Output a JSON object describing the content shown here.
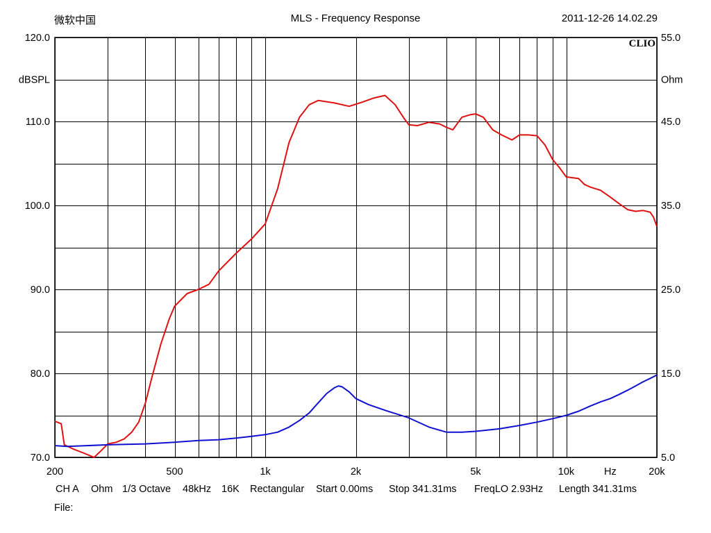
{
  "header": {
    "left": "微软中国",
    "title": "MLS - Frequency Response",
    "timestamp": "2011-12-26 14.02.29"
  },
  "chart_data": {
    "type": "line",
    "title": "MLS - Frequency Response",
    "brand": "CLIO",
    "x_scale": "log",
    "xlim": [
      200,
      20000
    ],
    "x_unit": "Hz",
    "x_tick_labels": [
      {
        "value": 200,
        "label": "200"
      },
      {
        "value": 500,
        "label": "500"
      },
      {
        "value": 1000,
        "label": "1k"
      },
      {
        "value": 2000,
        "label": "2k"
      },
      {
        "value": 5000,
        "label": "5k"
      },
      {
        "value": 10000,
        "label": "10k"
      },
      {
        "value": 20000,
        "label": "20k"
      }
    ],
    "x_gridlines": [
      200,
      300,
      400,
      500,
      600,
      700,
      800,
      900,
      1000,
      2000,
      3000,
      4000,
      5000,
      6000,
      7000,
      8000,
      9000,
      10000,
      20000
    ],
    "y_left": {
      "unit": "dBSPL",
      "range": [
        70,
        120
      ],
      "ticks": [
        {
          "value": 70,
          "label": "70.0"
        },
        {
          "value": 80,
          "label": "80.0"
        },
        {
          "value": 90,
          "label": "90.0"
        },
        {
          "value": 100,
          "label": "100.0"
        },
        {
          "value": 110,
          "label": "110.0"
        },
        {
          "value": 120,
          "label": "120.0"
        }
      ]
    },
    "y_right": {
      "unit": "Ohm",
      "range": [
        5,
        55
      ],
      "ticks": [
        {
          "value": 5,
          "label": "5.0"
        },
        {
          "value": 15,
          "label": "15.0"
        },
        {
          "value": 25,
          "label": "25.0"
        },
        {
          "value": 35,
          "label": "35.0"
        },
        {
          "value": 45,
          "label": "45.0"
        },
        {
          "value": 55,
          "label": "55.0"
        }
      ]
    },
    "grid": true,
    "series": [
      {
        "color": "#e01010",
        "axis": "left",
        "points": [
          [
            200,
            74.3
          ],
          [
            210,
            74.0
          ],
          [
            215,
            71.5
          ],
          [
            230,
            71.0
          ],
          [
            250,
            70.5
          ],
          [
            270,
            70.0
          ],
          [
            285,
            70.8
          ],
          [
            300,
            71.6
          ],
          [
            320,
            71.8
          ],
          [
            340,
            72.2
          ],
          [
            360,
            73.0
          ],
          [
            380,
            74.2
          ],
          [
            400,
            76.5
          ],
          [
            420,
            79.5
          ],
          [
            450,
            83.5
          ],
          [
            480,
            86.5
          ],
          [
            500,
            88.0
          ],
          [
            550,
            89.5
          ],
          [
            600,
            90.0
          ],
          [
            650,
            90.6
          ],
          [
            700,
            92.2
          ],
          [
            800,
            94.3
          ],
          [
            900,
            96.0
          ],
          [
            1000,
            97.8
          ],
          [
            1100,
            102.0
          ],
          [
            1200,
            107.5
          ],
          [
            1300,
            110.5
          ],
          [
            1400,
            112.0
          ],
          [
            1500,
            112.5
          ],
          [
            1700,
            112.2
          ],
          [
            1900,
            111.8
          ],
          [
            2100,
            112.3
          ],
          [
            2300,
            112.8
          ],
          [
            2500,
            113.1
          ],
          [
            2700,
            112.0
          ],
          [
            2900,
            110.3
          ],
          [
            3000,
            109.6
          ],
          [
            3200,
            109.5
          ],
          [
            3500,
            109.9
          ],
          [
            3800,
            109.7
          ],
          [
            4000,
            109.3
          ],
          [
            4200,
            109.0
          ],
          [
            4500,
            110.5
          ],
          [
            4800,
            110.8
          ],
          [
            5000,
            110.9
          ],
          [
            5300,
            110.5
          ],
          [
            5700,
            109.0
          ],
          [
            6100,
            108.4
          ],
          [
            6600,
            107.8
          ],
          [
            7000,
            108.4
          ],
          [
            7500,
            108.4
          ],
          [
            8000,
            108.3
          ],
          [
            8500,
            107.2
          ],
          [
            9000,
            105.5
          ],
          [
            9500,
            104.5
          ],
          [
            10000,
            103.4
          ],
          [
            10500,
            103.3
          ],
          [
            11000,
            103.2
          ],
          [
            11500,
            102.5
          ],
          [
            12000,
            102.2
          ],
          [
            13000,
            101.8
          ],
          [
            14000,
            101.0
          ],
          [
            15000,
            100.2
          ],
          [
            16000,
            99.5
          ],
          [
            17000,
            99.3
          ],
          [
            18000,
            99.4
          ],
          [
            19000,
            99.2
          ],
          [
            19500,
            98.6
          ],
          [
            20000,
            97.5
          ]
        ]
      },
      {
        "color": "#1010d0",
        "axis": "right",
        "points": [
          [
            200,
            6.4
          ],
          [
            220,
            6.3
          ],
          [
            300,
            6.5
          ],
          [
            400,
            6.6
          ],
          [
            500,
            6.8
          ],
          [
            600,
            7.0
          ],
          [
            700,
            7.1
          ],
          [
            800,
            7.3
          ],
          [
            900,
            7.5
          ],
          [
            1000,
            7.7
          ],
          [
            1100,
            8.0
          ],
          [
            1200,
            8.6
          ],
          [
            1300,
            9.4
          ],
          [
            1400,
            10.3
          ],
          [
            1500,
            11.5
          ],
          [
            1600,
            12.6
          ],
          [
            1700,
            13.3
          ],
          [
            1750,
            13.5
          ],
          [
            1800,
            13.4
          ],
          [
            1900,
            12.8
          ],
          [
            2000,
            12.0
          ],
          [
            2200,
            11.3
          ],
          [
            2500,
            10.6
          ],
          [
            3000,
            9.7
          ],
          [
            3500,
            8.6
          ],
          [
            4000,
            8.0
          ],
          [
            4500,
            8.0
          ],
          [
            5000,
            8.1
          ],
          [
            6000,
            8.4
          ],
          [
            7000,
            8.8
          ],
          [
            8000,
            9.2
          ],
          [
            9000,
            9.6
          ],
          [
            10000,
            10.0
          ],
          [
            11000,
            10.5
          ],
          [
            12000,
            11.1
          ],
          [
            13000,
            11.6
          ],
          [
            14000,
            12.0
          ],
          [
            15000,
            12.5
          ],
          [
            16000,
            13.0
          ],
          [
            17000,
            13.5
          ],
          [
            18000,
            14.0
          ],
          [
            19000,
            14.4
          ],
          [
            20000,
            14.8
          ]
        ]
      }
    ]
  },
  "footer": {
    "channel": "CH A",
    "unit": "Ohm",
    "octave": "1/3 Octave",
    "rate": "48kHz",
    "size": "16K",
    "window": "Rectangular",
    "start": "Start 0.00ms",
    "stop": "Stop 341.31ms",
    "freqlo": "FreqLO 2.93Hz",
    "length": "Length 341.31ms",
    "file_label": "File:"
  }
}
